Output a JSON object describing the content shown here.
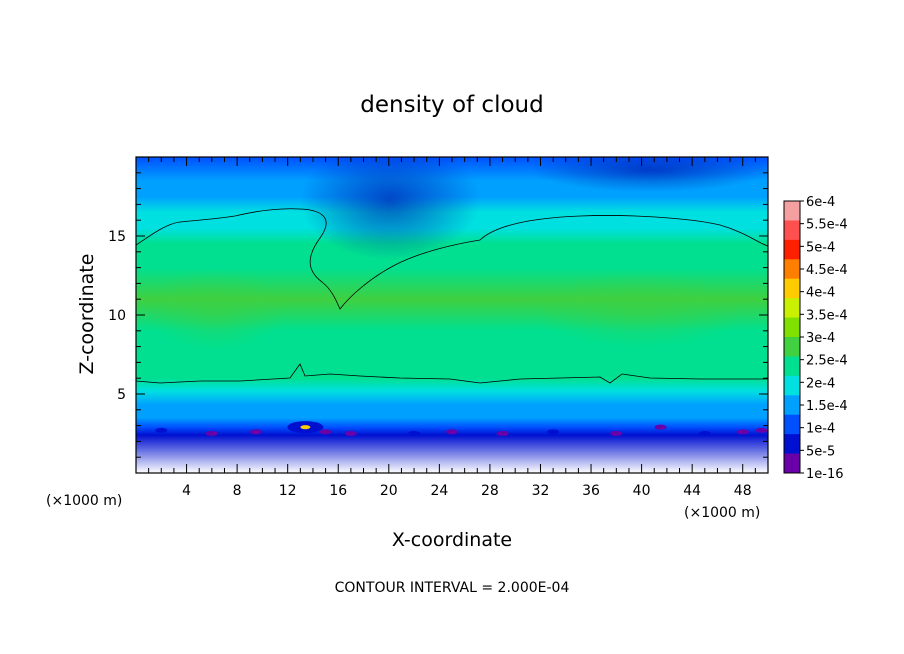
{
  "chart_data": {
    "type": "heatmap",
    "title": "density of cloud",
    "xlabel": "X-coordinate",
    "ylabel": "Z-coordinate",
    "x_unit_label": "(×1000 m)",
    "xlim": [
      0,
      50
    ],
    "ylim": [
      0,
      20
    ],
    "x_ticks": [
      "4",
      "8",
      "12",
      "16",
      "20",
      "24",
      "28",
      "32",
      "36",
      "40",
      "44",
      "48"
    ],
    "y_ticks": [
      "5",
      "10",
      "15"
    ],
    "footer": "CONTOUR INTERVAL = 2.000E-04",
    "colorbar": {
      "levels": [
        "6e-4",
        "5.5e-4",
        "5e-4",
        "4.5e-4",
        "4e-4",
        "3.5e-4",
        "3e-4",
        "2.5e-4",
        "2e-4",
        "1.5e-4",
        "1e-4",
        "5e-5",
        "1e-16"
      ],
      "colors": [
        "#f4a0a0",
        "#ff5050",
        "#ff2000",
        "#ff8000",
        "#ffcc00",
        "#c8f000",
        "#80e000",
        "#40d040",
        "#00e090",
        "#00e0e0",
        "#00a0ff",
        "#0050ff",
        "#0010d0",
        "#6a00a8"
      ]
    },
    "field_profile": {
      "z": [
        0,
        2.4,
        2.9,
        3.5,
        4.3,
        5.2,
        6.0,
        7.0,
        9.0,
        11.0,
        13.0,
        14.5,
        15.5,
        16.5,
        17.5,
        18.5,
        20.0
      ],
      "value": [
        null,
        1e-16,
        5e-05,
        0.0001,
        0.00013,
        0.00017,
        0.0002,
        0.000225,
        0.00024,
        0.00025,
        0.00023,
        0.00021,
        0.00019,
        0.00016,
        0.00013,
        0.0001,
        7e-05
      ]
    }
  }
}
